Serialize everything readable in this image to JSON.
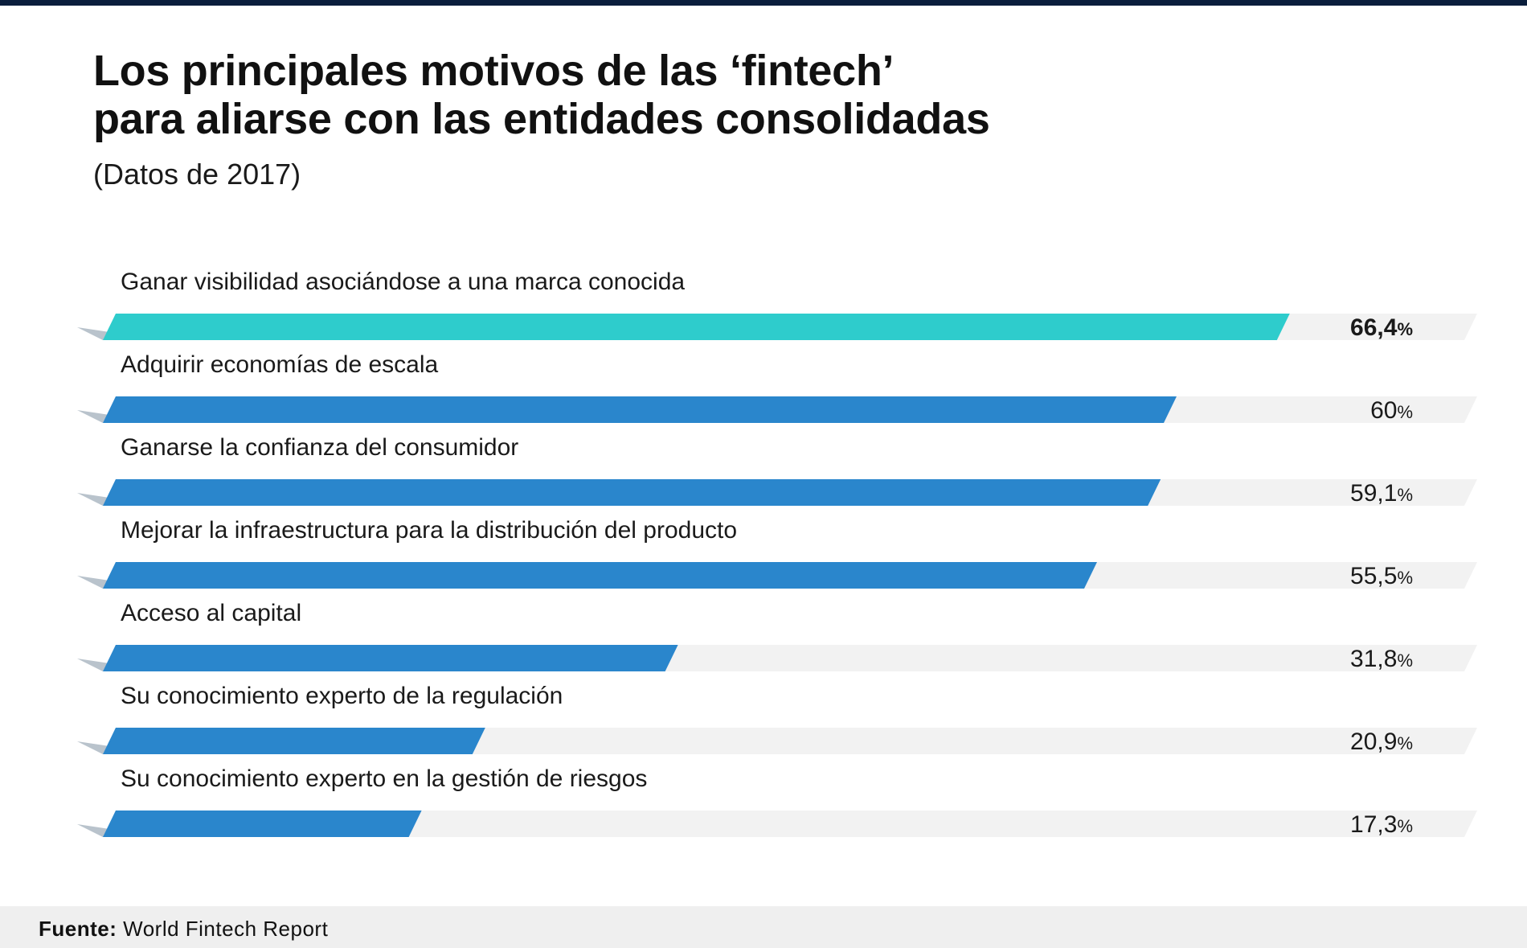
{
  "title": {
    "line1": "Los principales motivos de las ‘fintech’",
    "line2": "para aliarse con las entidades consolidadas"
  },
  "subtitle": "(Datos de 2017)",
  "footer": {
    "source_label": "Fuente:",
    "source_value": "World Fintech Report"
  },
  "colors": {
    "highlight": "#2ecccc",
    "bar": "#2a86cc",
    "track": "#f2f2f2",
    "shadow": "#b9c3cc"
  },
  "chart_data": {
    "type": "bar",
    "orientation": "horizontal",
    "categories": [
      "Ganar visibilidad asociándose a una marca conocida",
      "Adquirir economías de escala",
      "Ganarse la confianza del consumidor",
      "Mejorar la infraestructura para la distribución del producto",
      "Acceso al capital",
      "Su conocimiento experto de la regulación",
      "Su conocimiento experto en la gestión de riesgos"
    ],
    "values": [
      66.4,
      60,
      59.1,
      55.5,
      31.8,
      20.9,
      17.3
    ],
    "value_labels": [
      "66,4",
      "60",
      "59,1",
      "55,5",
      "31,8",
      "20,9",
      "17,3"
    ],
    "unit": "%",
    "highlight_index": 0,
    "xlim": [
      0,
      77
    ]
  }
}
